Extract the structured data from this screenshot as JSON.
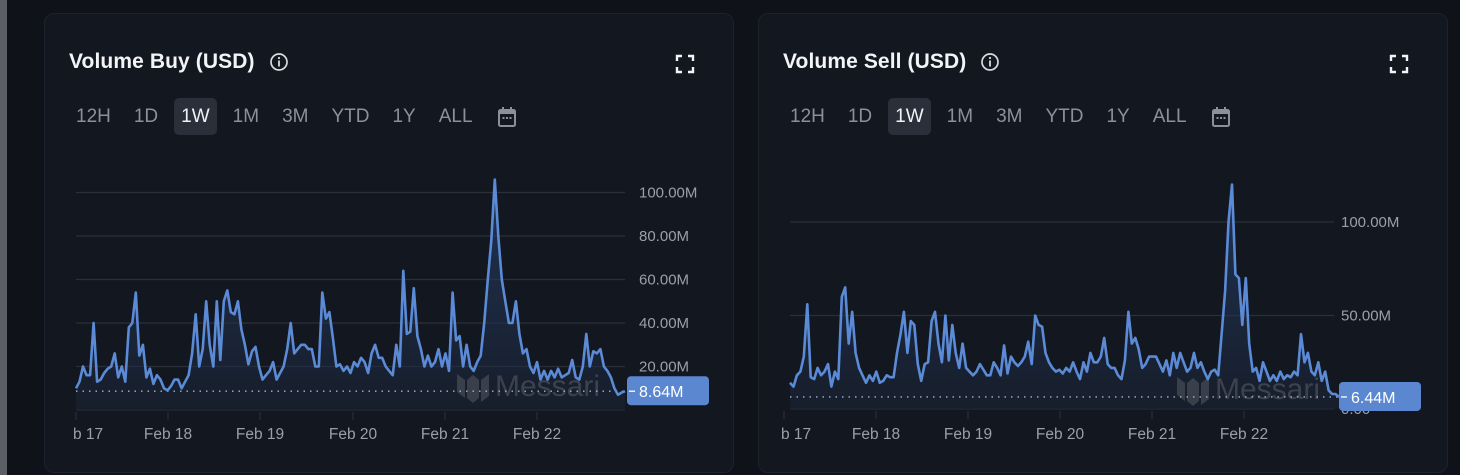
{
  "cards": [
    {
      "title": "Volume Buy (USD)",
      "info_icon": "info-circle-icon",
      "expand_icon": "fullscreen-icon",
      "ranges": [
        "12H",
        "1D",
        "1W",
        "1M",
        "3M",
        "YTD",
        "1Y",
        "ALL"
      ],
      "active_range": "1W",
      "calendar_icon": "calendar-icon",
      "current_value_label": "8.64M",
      "watermark": "Messari"
    },
    {
      "title": "Volume Sell (USD)",
      "info_icon": "info-circle-icon",
      "expand_icon": "fullscreen-icon",
      "ranges": [
        "12H",
        "1D",
        "1W",
        "1M",
        "3M",
        "YTD",
        "1Y",
        "ALL"
      ],
      "active_range": "1W",
      "calendar_icon": "calendar-icon",
      "current_value_label": "6.44M",
      "watermark": "Messari"
    }
  ],
  "colors": {
    "line": "#5b8ad6",
    "badge": "#5b87d0",
    "grid": "#2a2f38",
    "background": "#131720"
  },
  "chart_data": [
    {
      "type": "area",
      "title": "Volume Buy (USD)",
      "xlabel": "",
      "ylabel": "",
      "x_tick_labels": [
        "b 17",
        "Feb 18",
        "Feb 19",
        "Feb 20",
        "Feb 21",
        "Feb 22"
      ],
      "y_tick_labels": [
        "20.00M",
        "40.00M",
        "60.00M",
        "80.00M",
        "100.00M"
      ],
      "y_ticks": [
        20,
        40,
        60,
        80,
        100
      ],
      "ylim": [
        0,
        110
      ],
      "unit": "M USD",
      "grid": true,
      "current_value": 8.64,
      "series": [
        {
          "name": "Volume Buy",
          "values": [
            10,
            13,
            20,
            16,
            16,
            40,
            13,
            14,
            17,
            19,
            20,
            26,
            15,
            20,
            13,
            38,
            40,
            54,
            25,
            30,
            15,
            19,
            12,
            16,
            14,
            10,
            9,
            11,
            14,
            14,
            10,
            13,
            16,
            26,
            44,
            20,
            28,
            50,
            30,
            20,
            50,
            23,
            50,
            55,
            45,
            44,
            50,
            37,
            30,
            21,
            27,
            29,
            20,
            14,
            16,
            18,
            22,
            14,
            17,
            20,
            28,
            40,
            26,
            28,
            30,
            30,
            28,
            28,
            20,
            20,
            54,
            42,
            45,
            33,
            20,
            21,
            18,
            20,
            17,
            22,
            20,
            24,
            22,
            17,
            26,
            30,
            24,
            24,
            20,
            18,
            16,
            30,
            20,
            64,
            35,
            36,
            56,
            34,
            28,
            20,
            25,
            20,
            22,
            28,
            20,
            26,
            18,
            54,
            32,
            34,
            20,
            30,
            20,
            18,
            22,
            25,
            40,
            60,
            78,
            106,
            80,
            60,
            50,
            40,
            40,
            50,
            35,
            26,
            28,
            20,
            17,
            22,
            14,
            18,
            14,
            18,
            15,
            19,
            15,
            16,
            17,
            23,
            15,
            14,
            20,
            35,
            20,
            27,
            26,
            28,
            20,
            18,
            15,
            10,
            7,
            8,
            8.64
          ]
        }
      ]
    },
    {
      "type": "area",
      "title": "Volume Sell (USD)",
      "xlabel": "",
      "ylabel": "",
      "x_tick_labels": [
        "b 17",
        "Feb 18",
        "Feb 19",
        "Feb 20",
        "Feb 21",
        "Feb 22"
      ],
      "y_tick_labels": [
        "0.00",
        "50.00M",
        "100.00M"
      ],
      "y_ticks": [
        0,
        50,
        100
      ],
      "ylim": [
        0,
        120
      ],
      "unit": "M USD",
      "grid": true,
      "current_value": 6.44,
      "series": [
        {
          "name": "Volume Sell",
          "values": [
            14,
            12,
            18,
            20,
            28,
            56,
            17,
            16,
            22,
            18,
            20,
            24,
            12,
            20,
            16,
            60,
            65,
            35,
            52,
            30,
            22,
            18,
            14,
            18,
            15,
            20,
            14,
            15,
            18,
            17,
            17,
            30,
            40,
            52,
            30,
            47,
            45,
            24,
            15,
            24,
            25,
            47,
            52,
            35,
            25,
            50,
            26,
            45,
            30,
            22,
            35,
            22,
            20,
            18,
            20,
            24,
            21,
            18,
            18,
            25,
            22,
            18,
            34,
            19,
            28,
            25,
            23,
            25,
            28,
            36,
            24,
            50,
            45,
            44,
            30,
            25,
            22,
            20,
            21,
            19,
            22,
            20,
            25,
            20,
            16,
            25,
            20,
            30,
            25,
            25,
            28,
            38,
            24,
            22,
            22,
            18,
            16,
            26,
            52,
            35,
            38,
            32,
            22,
            24,
            28,
            28,
            28,
            24,
            20,
            26,
            18,
            30,
            22,
            30,
            25,
            20,
            22,
            30,
            22,
            25,
            20,
            16,
            20,
            21,
            18,
            40,
            63,
            100,
            120,
            72,
            70,
            45,
            70,
            35,
            20,
            22,
            15,
            25,
            20,
            15,
            18,
            15,
            20,
            16,
            18,
            17,
            20,
            18,
            40,
            25,
            30,
            20,
            18,
            25,
            15,
            20,
            10,
            8,
            8,
            6.44
          ]
        }
      ]
    }
  ]
}
